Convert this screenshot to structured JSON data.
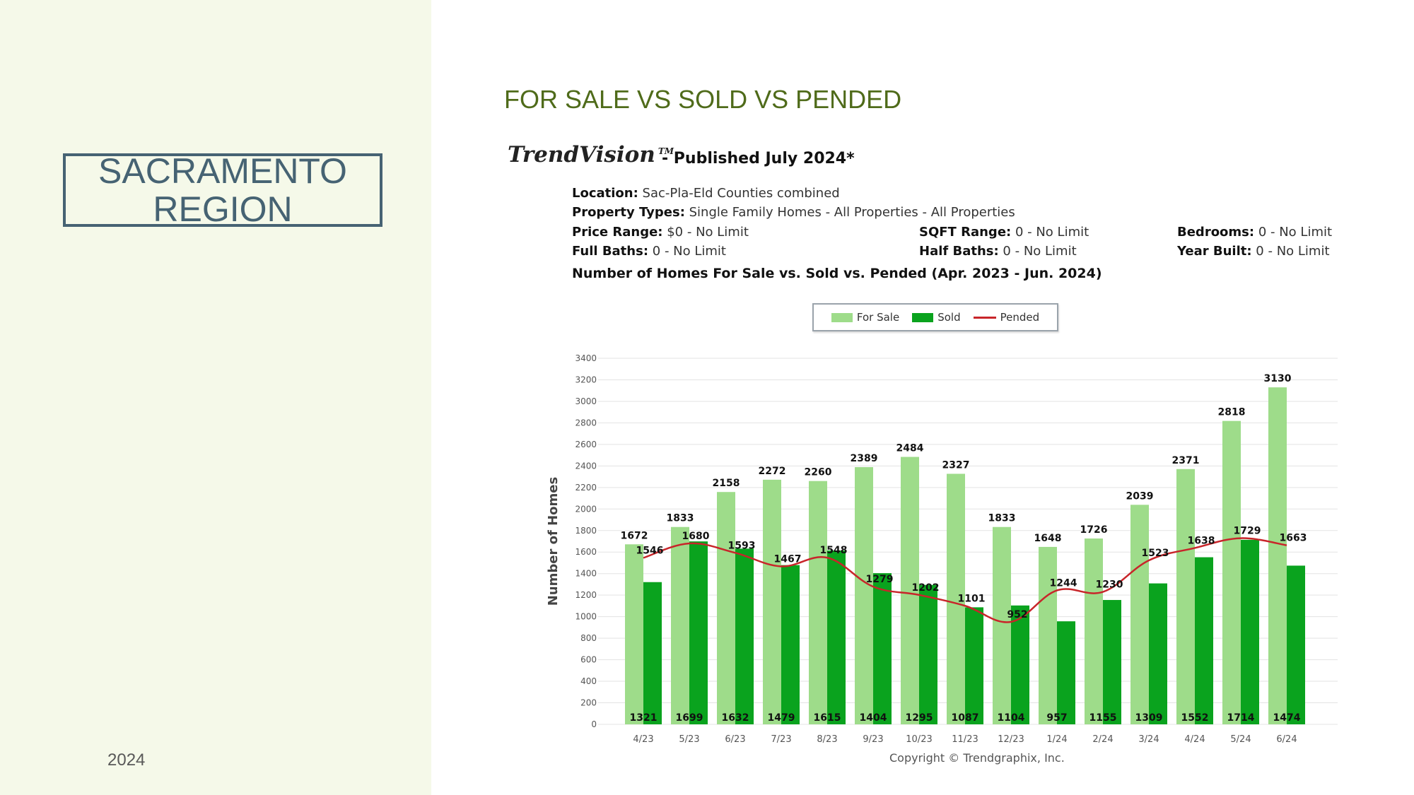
{
  "left_panel": {
    "region_line1": "SACRAMENTO",
    "region_line2": "REGION",
    "year": "2024"
  },
  "slide_title": "FOR SALE VS SOLD VS PENDED",
  "report": {
    "logo": "TrendVision",
    "logo_mark": "TM",
    "published": "- Published July 2024*",
    "location_label": "Location:",
    "location_value": "Sac-Pla-Eld Counties combined",
    "property_types_label": "Property Types:",
    "property_types_value": "Single Family Homes - All Properties - All Properties",
    "price_range_label": "Price Range:",
    "price_range_value": "$0 - No Limit",
    "sqft_range_label": "SQFT Range:",
    "sqft_range_value": "0 - No Limit",
    "bedrooms_label": "Bedrooms:",
    "bedrooms_value": "0 - No Limit",
    "full_baths_label": "Full Baths:",
    "full_baths_value": "0 - No Limit",
    "half_baths_label": "Half Baths:",
    "half_baths_value": "0 - No Limit",
    "year_built_label": "Year Built:",
    "year_built_value": "0 - No Limit",
    "chart_heading": "Number of Homes For Sale vs. Sold vs. Pended (Apr. 2023 - Jun. 2024)",
    "copyright": "Copyright © Trendgraphix, Inc."
  },
  "colors": {
    "for_sale": "#9edc8a",
    "sold": "#0aa31e",
    "pended": "#c8252a",
    "title_green": "#4f6b1a",
    "region_blue": "#466373",
    "panel_bg": "#f5f9e9"
  },
  "chart_data": {
    "type": "bar",
    "title": "Number of Homes For Sale vs. Sold vs. Pended (Apr. 2023 - Jun. 2024)",
    "ylabel": "Number of Homes",
    "xlabel": "",
    "ylim": [
      0,
      3400
    ],
    "yticks": [
      0,
      200,
      400,
      600,
      800,
      1000,
      1200,
      1400,
      1600,
      1800,
      2000,
      2200,
      2400,
      2600,
      2800,
      3000,
      3200,
      3400
    ],
    "grid": true,
    "legend_position": "top-center",
    "categories": [
      "4/23",
      "5/23",
      "6/23",
      "7/23",
      "8/23",
      "9/23",
      "10/23",
      "11/23",
      "12/23",
      "1/24",
      "2/24",
      "3/24",
      "4/24",
      "5/24",
      "6/24"
    ],
    "series": [
      {
        "name": "For Sale",
        "kind": "bar",
        "values": [
          1672,
          1833,
          2158,
          2272,
          2260,
          2389,
          2484,
          2327,
          1833,
          1648,
          1726,
          2039,
          2371,
          2818,
          3130
        ]
      },
      {
        "name": "Sold",
        "kind": "bar",
        "values": [
          1321,
          1699,
          1632,
          1479,
          1615,
          1404,
          1295,
          1087,
          1104,
          957,
          1155,
          1309,
          1552,
          1714,
          1474
        ]
      },
      {
        "name": "Pended",
        "kind": "line",
        "values": [
          1546,
          1680,
          1593,
          1467,
          1548,
          1279,
          1202,
          1101,
          952,
          1244,
          1230,
          1523,
          1638,
          1729,
          1663
        ]
      }
    ]
  }
}
